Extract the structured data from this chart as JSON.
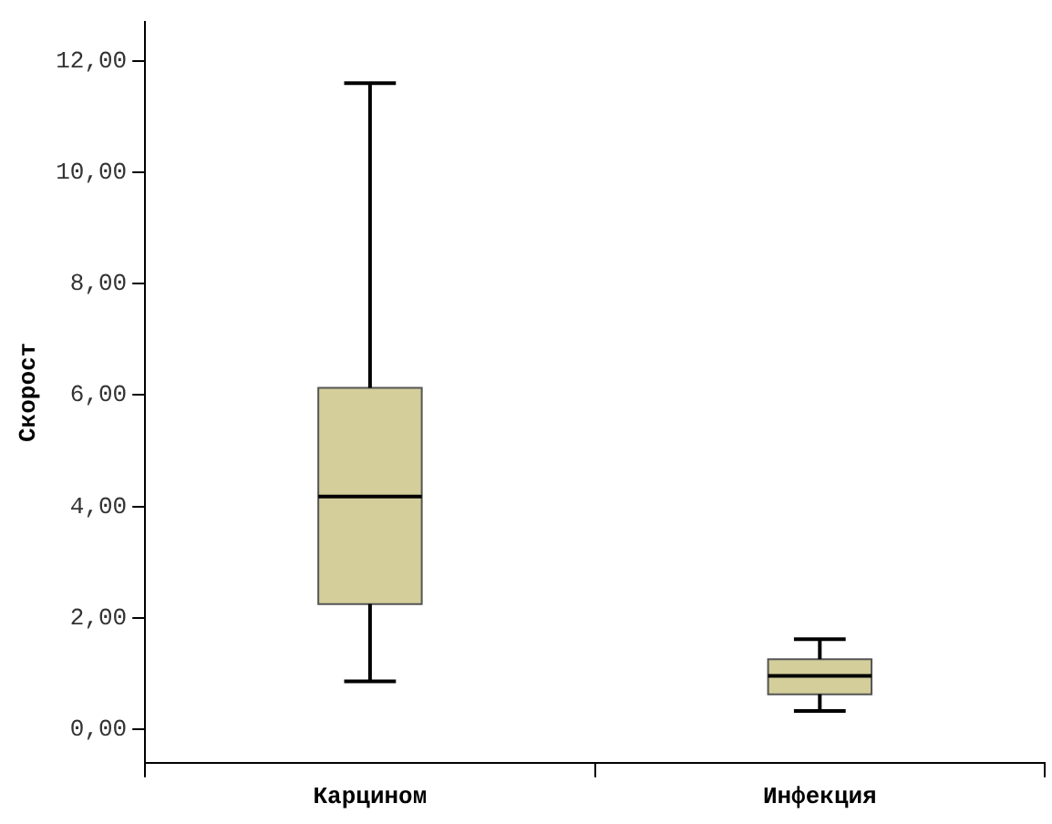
{
  "chart_data": {
    "type": "box",
    "ylabel": "Скорост",
    "categories": [
      "Карцином",
      "Инфекция"
    ],
    "color": "#d3ce9a",
    "boxes": [
      {
        "low": 0.86,
        "q1": 2.25,
        "median": 4.18,
        "q3": 6.13,
        "high": 11.6
      },
      {
        "low": 0.33,
        "q1": 0.63,
        "median": 0.96,
        "q3": 1.26,
        "high": 1.62
      }
    ],
    "ylim": [
      -0.6,
      12.7
    ],
    "yticks": [
      {
        "value": 0,
        "label": "0,00"
      },
      {
        "value": 2,
        "label": "2,00"
      },
      {
        "value": 4,
        "label": "4,00"
      },
      {
        "value": 6,
        "label": "6,00"
      },
      {
        "value": 8,
        "label": "8,00"
      },
      {
        "value": 10,
        "label": "10,00"
      },
      {
        "value": 12,
        "label": "12,00"
      }
    ],
    "grid": false,
    "legend": false
  }
}
